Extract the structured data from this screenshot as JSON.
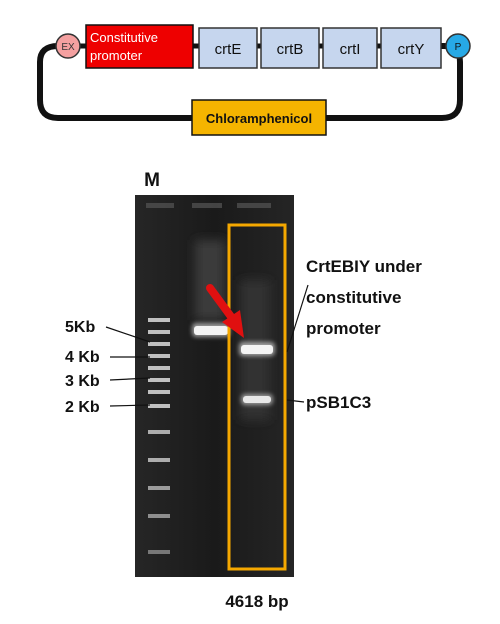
{
  "construct": {
    "left_cap": "EX",
    "promoter_lines": [
      "Constitutive",
      "promoter"
    ],
    "genes": [
      "crtE",
      "crtB",
      "crtI",
      "crtY"
    ],
    "right_cap": "P",
    "backbone_marker": "Chloramphenicol"
  },
  "gel": {
    "lane_label": "M",
    "ladder_labels": [
      "5Kb",
      "4 Kb",
      "3 Kb",
      "2 Kb"
    ],
    "band_annotation_lines": [
      "CrtEBIY under",
      "constitutive",
      "promoter"
    ],
    "vector_label": "pSB1C3",
    "size_caption": "4618 bp"
  },
  "colors": {
    "promoter": "#ee0000",
    "gene_box": "#c6d6ee",
    "marker_box": "#f5b400",
    "left_cap": "#f4a0a0",
    "right_cap": "#27a9e6",
    "highlight_frame": "#f5a800",
    "arrow": "#e01010",
    "gel_background": "#1e1e1e"
  }
}
